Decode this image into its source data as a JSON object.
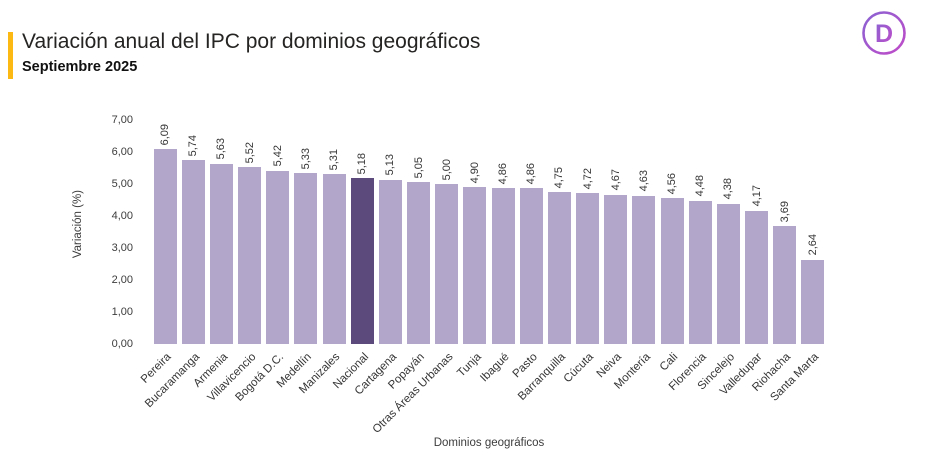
{
  "header": {
    "title": "Variación anual del IPC por dominios geográficos",
    "subtitle": "Septiembre 2025",
    "accent_color": "#FDB913",
    "logo_letter": "D",
    "logo_gradient": [
      "#8A63D2",
      "#C04BC8"
    ]
  },
  "chart_data": {
    "type": "bar",
    "title": "Variación anual del IPC por dominios geográficos",
    "subtitle": "Septiembre 2025",
    "xlabel": "Dominios geográficos",
    "ylabel": "Variación (%)",
    "ylim": [
      0,
      7
    ],
    "ytick_labels": [
      "0,00",
      "1,00",
      "2,00",
      "3,00",
      "4,00",
      "5,00",
      "6,00",
      "7,00"
    ],
    "grid": false,
    "legend": false,
    "bar_color": "#B3A6CB",
    "highlight_color": "#5B4A7B",
    "highlight_category": "Nacional",
    "categories": [
      "Pereira",
      "Bucaramanga",
      "Armenia",
      "Villavicencio",
      "Bogotá D.C.",
      "Medellín",
      "Manizales",
      "Nacional",
      "Cartagena",
      "Popayán",
      "Otras Áreas Urbanas",
      "Tunja",
      "Ibagué",
      "Pasto",
      "Barranquilla",
      "Cúcuta",
      "Neiva",
      "Montería",
      "Cali",
      "Florencia",
      "Sincelejo",
      "Valledupar",
      "Riohacha",
      "Santa Marta"
    ],
    "values": [
      6.09,
      5.74,
      5.63,
      5.52,
      5.42,
      5.33,
      5.31,
      5.18,
      5.13,
      5.05,
      5.0,
      4.9,
      4.86,
      4.86,
      4.75,
      4.72,
      4.67,
      4.63,
      4.56,
      4.48,
      4.38,
      4.17,
      3.69,
      2.64
    ],
    "value_labels": [
      "6,09",
      "5,74",
      "5,63",
      "5,52",
      "5,42",
      "5,33",
      "5,31",
      "5,18",
      "5,13",
      "5,05",
      "5,00",
      "4,90",
      "4,86",
      "4,86",
      "4,75",
      "4,72",
      "4,67",
      "4,63",
      "4,56",
      "4,48",
      "4,38",
      "4,17",
      "3,69",
      "2,64"
    ]
  }
}
